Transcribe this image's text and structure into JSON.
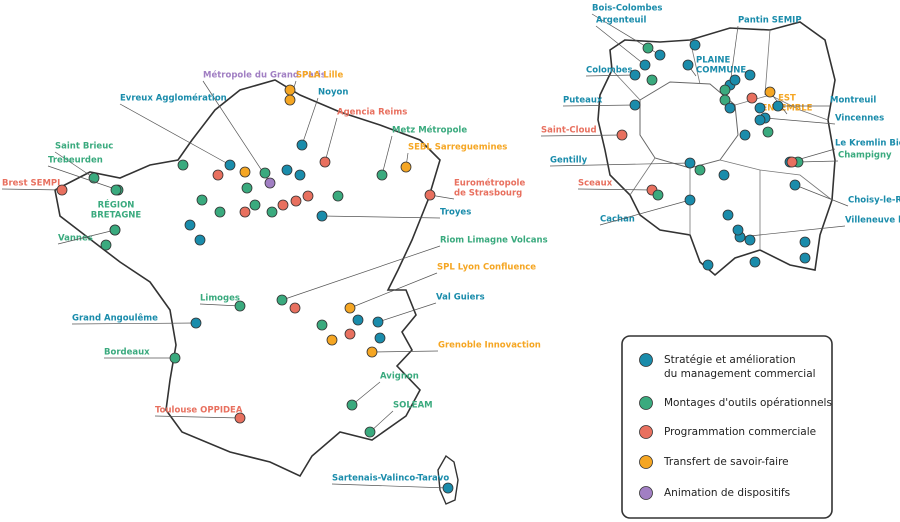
{
  "france": {
    "places": [
      {
        "lines": [
          "Métropole du Grand Paris"
        ],
        "color": "#a17fc3"
      },
      {
        "lines": [
          "SPLA Lille"
        ],
        "color": "#f5a623"
      },
      {
        "lines": [
          "Noyon"
        ],
        "color": "#1a8cab"
      },
      {
        "lines": [
          "Evreux Agglomération"
        ],
        "color": "#1a8cab"
      },
      {
        "lines": [
          "Agencia Reims"
        ],
        "color": "#e8705f"
      },
      {
        "lines": [
          "Metz Métropole"
        ],
        "color": "#3aaa7e"
      },
      {
        "lines": [
          "Saint Brieuc"
        ],
        "color": "#3aaa7e"
      },
      {
        "lines": [
          "SEBL Sarreguemines"
        ],
        "color": "#f5a623"
      },
      {
        "lines": [
          "Trebeurden"
        ],
        "color": "#3aaa7e"
      },
      {
        "lines": [
          "Brest SEMPI"
        ],
        "color": "#e8705f"
      },
      {
        "lines": [
          "RÉGION",
          "BRETAGNE"
        ],
        "color": "#3aaa7e"
      },
      {
        "lines": [
          "Eurométropole",
          "de Strasbourg"
        ],
        "color": "#e8705f"
      },
      {
        "lines": [
          "Troyes"
        ],
        "color": "#1a8cab"
      },
      {
        "lines": [
          "Vannes"
        ],
        "color": "#3aaa7e"
      },
      {
        "lines": [
          "Riom Limagne Volcans"
        ],
        "color": "#3aaa7e"
      },
      {
        "lines": [
          "SPL Lyon Confluence"
        ],
        "color": "#f5a623"
      },
      {
        "lines": [
          "Limoges"
        ],
        "color": "#3aaa7e"
      },
      {
        "lines": [
          "Val Guiers"
        ],
        "color": "#1a8cab"
      },
      {
        "lines": [
          "Grand Angoulême"
        ],
        "color": "#1a8cab"
      },
      {
        "lines": [
          "Grenoble Innovaction"
        ],
        "color": "#f5a623"
      },
      {
        "lines": [
          "Bordeaux"
        ],
        "color": "#3aaa7e"
      },
      {
        "lines": [
          "Avignon"
        ],
        "color": "#3aaa7e"
      },
      {
        "lines": [
          "Toulouse OPPIDEA"
        ],
        "color": "#e8705f"
      },
      {
        "lines": [
          "SOLEAM"
        ],
        "color": "#3aaa7e"
      },
      {
        "lines": [
          "Sartenais-Valinco-Taravo"
        ],
        "color": "#1a8cab"
      }
    ]
  },
  "idf": {
    "places": [
      {
        "lines": [
          "Bois-Colombes"
        ],
        "color": "#1a8cab"
      },
      {
        "lines": [
          "Argenteuil"
        ],
        "color": "#1a8cab"
      },
      {
        "lines": [
          "Colombes"
        ],
        "color": "#1a8cab"
      },
      {
        "lines": [
          "Puteaux"
        ],
        "color": "#1a8cab"
      },
      {
        "lines": [
          "Saint-Cloud"
        ],
        "color": "#e8705f"
      },
      {
        "lines": [
          "Gentilly"
        ],
        "color": "#1a8cab"
      },
      {
        "lines": [
          "Sceaux"
        ],
        "color": "#e8705f"
      },
      {
        "lines": [
          "Cachan"
        ],
        "color": "#1a8cab"
      },
      {
        "lines": [
          "PLAINE",
          "COMMUNE"
        ],
        "color": "#1a8cab"
      },
      {
        "lines": [
          "Pantin SEMIP"
        ],
        "color": "#1a8cab"
      },
      {
        "lines": [
          "EST",
          "ENSEMBLE"
        ],
        "color": "#f5a623"
      },
      {
        "lines": [
          "Montreuil"
        ],
        "color": "#1a8cab"
      },
      {
        "lines": [
          "Vincennes"
        ],
        "color": "#1a8cab"
      },
      {
        "lines": [
          "Le Kremlin Bicêtre"
        ],
        "color": "#1a8cab"
      },
      {
        "lines": [
          "Champigny"
        ],
        "color": "#3aaa7e"
      },
      {
        "lines": [
          "Choisy-le-Roi"
        ],
        "color": "#1a8cab"
      },
      {
        "lines": [
          "Villeneuve le Roi"
        ],
        "color": "#1a8cab"
      }
    ]
  },
  "legend": {
    "items": [
      {
        "lines": [
          "Stratégie et amélioration",
          "du management commercial"
        ],
        "color": "#1a8cab"
      },
      {
        "lines": [
          "Montages d'outils opérationnels"
        ],
        "color": "#3aaa7e"
      },
      {
        "lines": [
          "Programmation commerciale"
        ],
        "color": "#e8705f"
      },
      {
        "lines": [
          "Transfert de savoir-faire"
        ],
        "color": "#f5a623"
      },
      {
        "lines": [
          "Animation de dispositifs"
        ],
        "color": "#a17fc3"
      }
    ]
  }
}
